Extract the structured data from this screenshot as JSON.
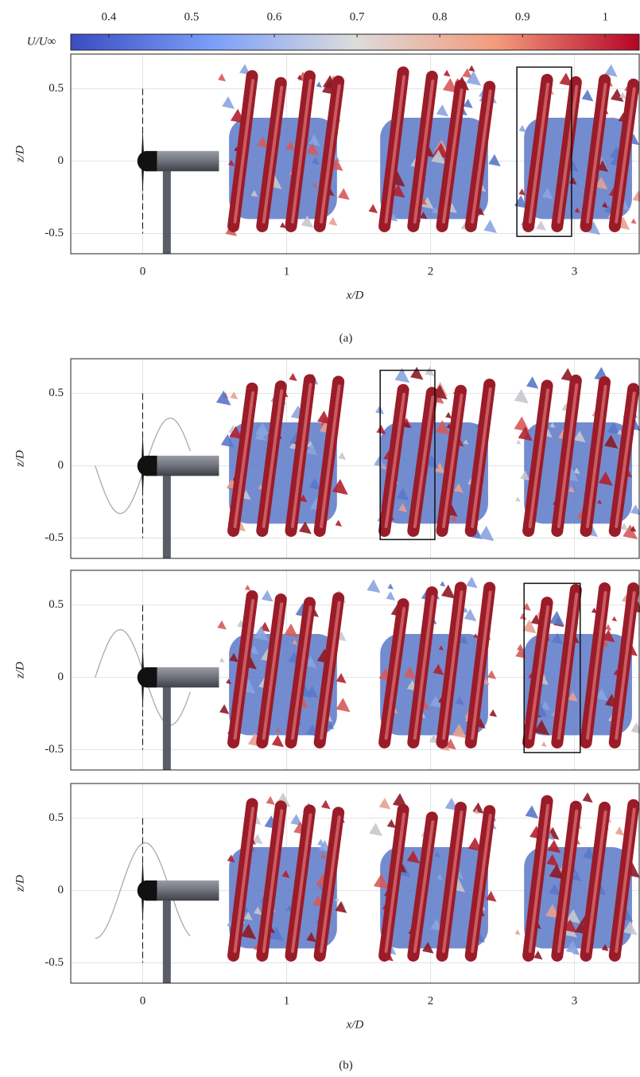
{
  "colorbar": {
    "label": "U/U∞",
    "lim": [
      0.354,
      1.041
    ],
    "ticks": [
      0.4,
      0.5,
      0.6,
      0.7,
      0.8,
      0.9,
      1
    ]
  },
  "figures": [
    {
      "caption": "(a)",
      "panels": [
        {
          "xlim": [
            -0.5,
            3.45
          ],
          "ylim": [
            -0.64,
            0.74
          ],
          "xticks": [
            0,
            1,
            2,
            3
          ],
          "yticks": [
            -0.5,
            0,
            0.5
          ],
          "ylabel": "z/D",
          "xlabel": "x/D"
        }
      ]
    },
    {
      "caption": "(b)",
      "panels": [
        {
          "xlim": [
            -0.5,
            3.45
          ],
          "ylim": [
            -0.64,
            0.74
          ],
          "xticks": [
            0,
            1,
            2,
            3
          ],
          "yticks": [
            -0.5,
            0,
            0.5
          ],
          "ylabel": "z/D"
        },
        {
          "xlim": [
            -0.5,
            3.45
          ],
          "ylim": [
            -0.64,
            0.74
          ],
          "xticks": [
            0,
            1,
            2,
            3
          ],
          "yticks": [
            -0.5,
            0,
            0.5
          ],
          "ylabel": "z/D"
        },
        {
          "xlim": [
            -0.5,
            3.45
          ],
          "ylim": [
            -0.64,
            0.74
          ],
          "xticks": [
            0,
            1,
            2,
            3
          ],
          "yticks": [
            -0.5,
            0,
            0.5
          ],
          "ylabel": "z/D",
          "xlabel": "x/D"
        }
      ]
    }
  ]
}
